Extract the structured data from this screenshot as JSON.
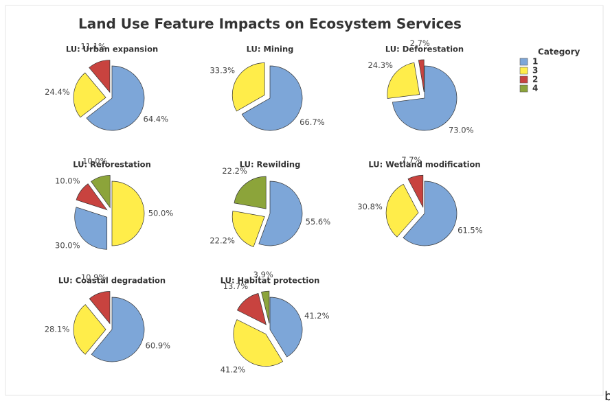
{
  "title": "Land Use Feature Impacts on Ecosystem Services",
  "legend": {
    "title": "Category",
    "items": [
      {
        "name": "1",
        "color": "#7da6d8"
      },
      {
        "name": "3",
        "color": "#ffed4a"
      },
      {
        "name": "2",
        "color": "#c8433f"
      },
      {
        "name": "4",
        "color": "#8ca43a"
      }
    ]
  },
  "chart_data": [
    {
      "type": "pie",
      "title": "LU: Urban expansion",
      "categories": [
        "1",
        "3",
        "2"
      ],
      "values": [
        64.4,
        24.4,
        11.1
      ],
      "value_labels": [
        "64.4%",
        "24.4%",
        "11.1%"
      ]
    },
    {
      "type": "pie",
      "title": "LU: Mining",
      "categories": [
        "1",
        "3"
      ],
      "values": [
        66.7,
        33.3
      ],
      "value_labels": [
        "66.7%",
        "33.3%"
      ]
    },
    {
      "type": "pie",
      "title": "LU: Deforestation",
      "categories": [
        "1",
        "3",
        "2"
      ],
      "values": [
        73.0,
        24.3,
        2.7
      ],
      "value_labels": [
        "73.0%",
        "24.3%",
        "2.7%"
      ]
    },
    {
      "type": "pie",
      "title": "LU: Reforestation",
      "categories": [
        "3",
        "1",
        "2",
        "4"
      ],
      "values": [
        50.0,
        30.0,
        10.0,
        10.0
      ],
      "value_labels": [
        "50.0%",
        "30.0%",
        "10.0%",
        "10.0%"
      ]
    },
    {
      "type": "pie",
      "title": "LU: Rewilding",
      "categories": [
        "1",
        "3",
        "4"
      ],
      "values": [
        55.6,
        22.2,
        22.2
      ],
      "value_labels": [
        "55.6%",
        "22.2%",
        "22.2%"
      ]
    },
    {
      "type": "pie",
      "title": "LU: Wetland modification",
      "categories": [
        "1",
        "3",
        "2"
      ],
      "values": [
        61.5,
        30.8,
        7.7
      ],
      "value_labels": [
        "61.5%",
        "30.8%",
        "7.7%"
      ]
    },
    {
      "type": "pie",
      "title": "LU: Coastal degradation",
      "categories": [
        "1",
        "3",
        "2"
      ],
      "values": [
        60.9,
        28.1,
        10.9
      ],
      "value_labels": [
        "60.9%",
        "28.1%",
        "10.9%"
      ]
    },
    {
      "type": "pie",
      "title": "LU: Habitat protection",
      "categories": [
        "1",
        "3",
        "2",
        "4"
      ],
      "values": [
        41.2,
        41.2,
        13.7,
        3.9
      ],
      "value_labels": [
        "41.2%",
        "41.2%",
        "13.7%",
        "3.9%"
      ]
    }
  ],
  "stray_text": "b"
}
